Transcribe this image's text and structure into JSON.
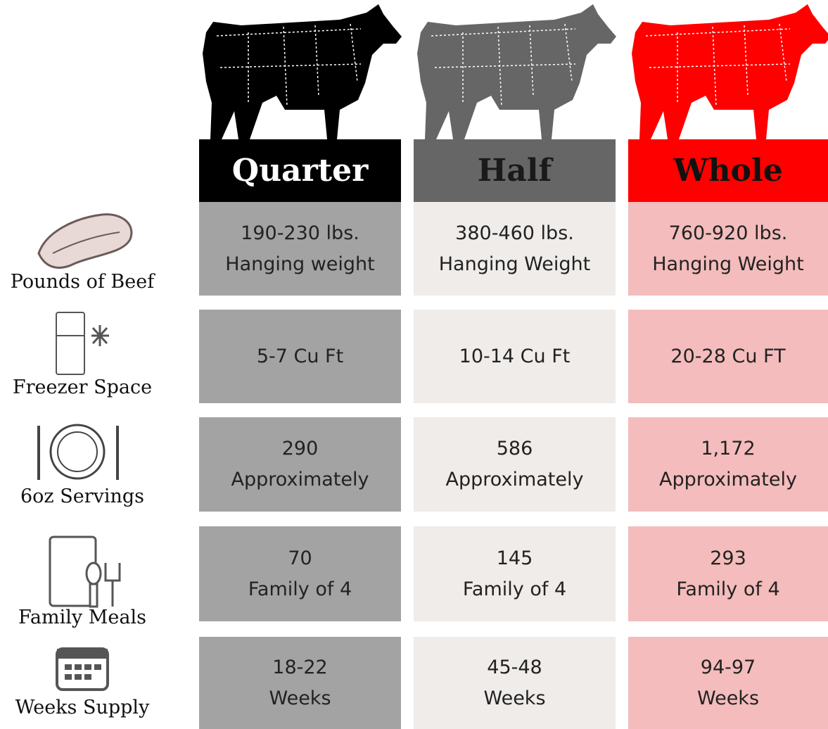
{
  "columns": [
    {
      "label": "Quarter"
    },
    {
      "label": "Half"
    },
    {
      "label": "Whole"
    }
  ],
  "rows": [
    {
      "label": "Pounds of Beef",
      "cells": [
        [
          "190-230 lbs.",
          "Hanging weight"
        ],
        [
          "380-460 lbs.",
          "Hanging Weight"
        ],
        [
          "760-920 lbs.",
          "Hanging Weight"
        ]
      ]
    },
    {
      "label": "Freezer Space",
      "cells": [
        [
          "5-7 Cu Ft"
        ],
        [
          "10-14 Cu Ft"
        ],
        [
          "20-28 Cu FT"
        ]
      ]
    },
    {
      "label": "6oz Servings",
      "cells": [
        [
          "290",
          "Approximately"
        ],
        [
          "586",
          "Approximately"
        ],
        [
          "1,172",
          "Approximately"
        ]
      ]
    },
    {
      "label": "Family Meals",
      "cells": [
        [
          "70",
          "Family of 4"
        ],
        [
          "145",
          "Family of 4"
        ],
        [
          "293",
          "Family of 4"
        ]
      ]
    },
    {
      "label": "Weeks Supply",
      "cells": [
        [
          "18-22",
          "Weeks"
        ],
        [
          "45-48",
          "Weeks"
        ],
        [
          "94-97",
          "Weeks"
        ]
      ]
    }
  ]
}
